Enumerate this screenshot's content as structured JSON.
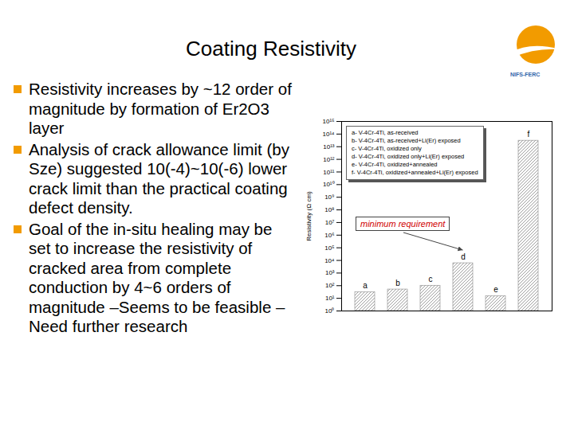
{
  "title": "Coating Resistivity",
  "logo_text": "NIFS-FERC",
  "bullets": [
    "Resistivity increases by ~12 order of magnitude by formation of Er2O3 layer",
    "Analysis of crack allowance limit (by Sze) suggested 10(-4)~10(-6) lower crack limit than the practical coating defect density.",
    "Goal of the in-situ healing may be set to increase the resistivity of cracked area from complete conduction by 4~6 orders of magnitude –Seems to be feasible –Need further research"
  ],
  "chart_data": {
    "type": "bar",
    "y_label": "Resistivity (Ω cm)",
    "categories": [
      "a",
      "b",
      "c",
      "d",
      "e",
      "f"
    ],
    "values": [
      30,
      50,
      100,
      6000,
      15,
      30000000000000
    ],
    "descriptions": [
      "a- V-4Cr-4Ti, as-received",
      "b- V-4Cr-4Ti, as-received+Li(Er) exposed",
      "c- V-4Cr-4Ti, oxidized only",
      "d- V-4Cr-4Ti, oxidized only+Li(Er) exposed",
      "e- V-4Cr-4Ti, oxidized+annealed",
      "f- V-4Cr-4Ti, oxidized+annealed+Li(Er) exposed"
    ],
    "annotation": {
      "text": "minimum requirement",
      "target": "d"
    },
    "color": "#888888",
    "log": "y",
    "grid": false,
    "tick_labels": "y",
    "ylim": [
      1,
      1000000000000000
    ],
    "yticks": [
      {
        "value": 1,
        "label": "10⁰"
      },
      {
        "value": 10,
        "label": "10¹"
      },
      {
        "value": 100,
        "label": "10²"
      },
      {
        "value": 1000,
        "label": "10³"
      },
      {
        "value": 10000,
        "label": "10⁴"
      },
      {
        "value": 100000,
        "label": "10⁵"
      },
      {
        "value": 1000000,
        "label": "10⁶"
      },
      {
        "value": 10000000,
        "label": "10⁷"
      },
      {
        "value": 100000000,
        "label": "10⁸"
      },
      {
        "value": 1000000000,
        "label": "10⁹"
      },
      {
        "value": 10000000000,
        "label": "10¹⁰"
      },
      {
        "value": 100000000000,
        "label": "10¹¹"
      },
      {
        "value": 1000000000000,
        "label": "10¹²"
      },
      {
        "value": 10000000000000,
        "label": "10¹³"
      },
      {
        "value": 100000000000000,
        "label": "10¹⁴"
      },
      {
        "value": 1000000000000000,
        "label": "10¹⁵"
      }
    ]
  }
}
